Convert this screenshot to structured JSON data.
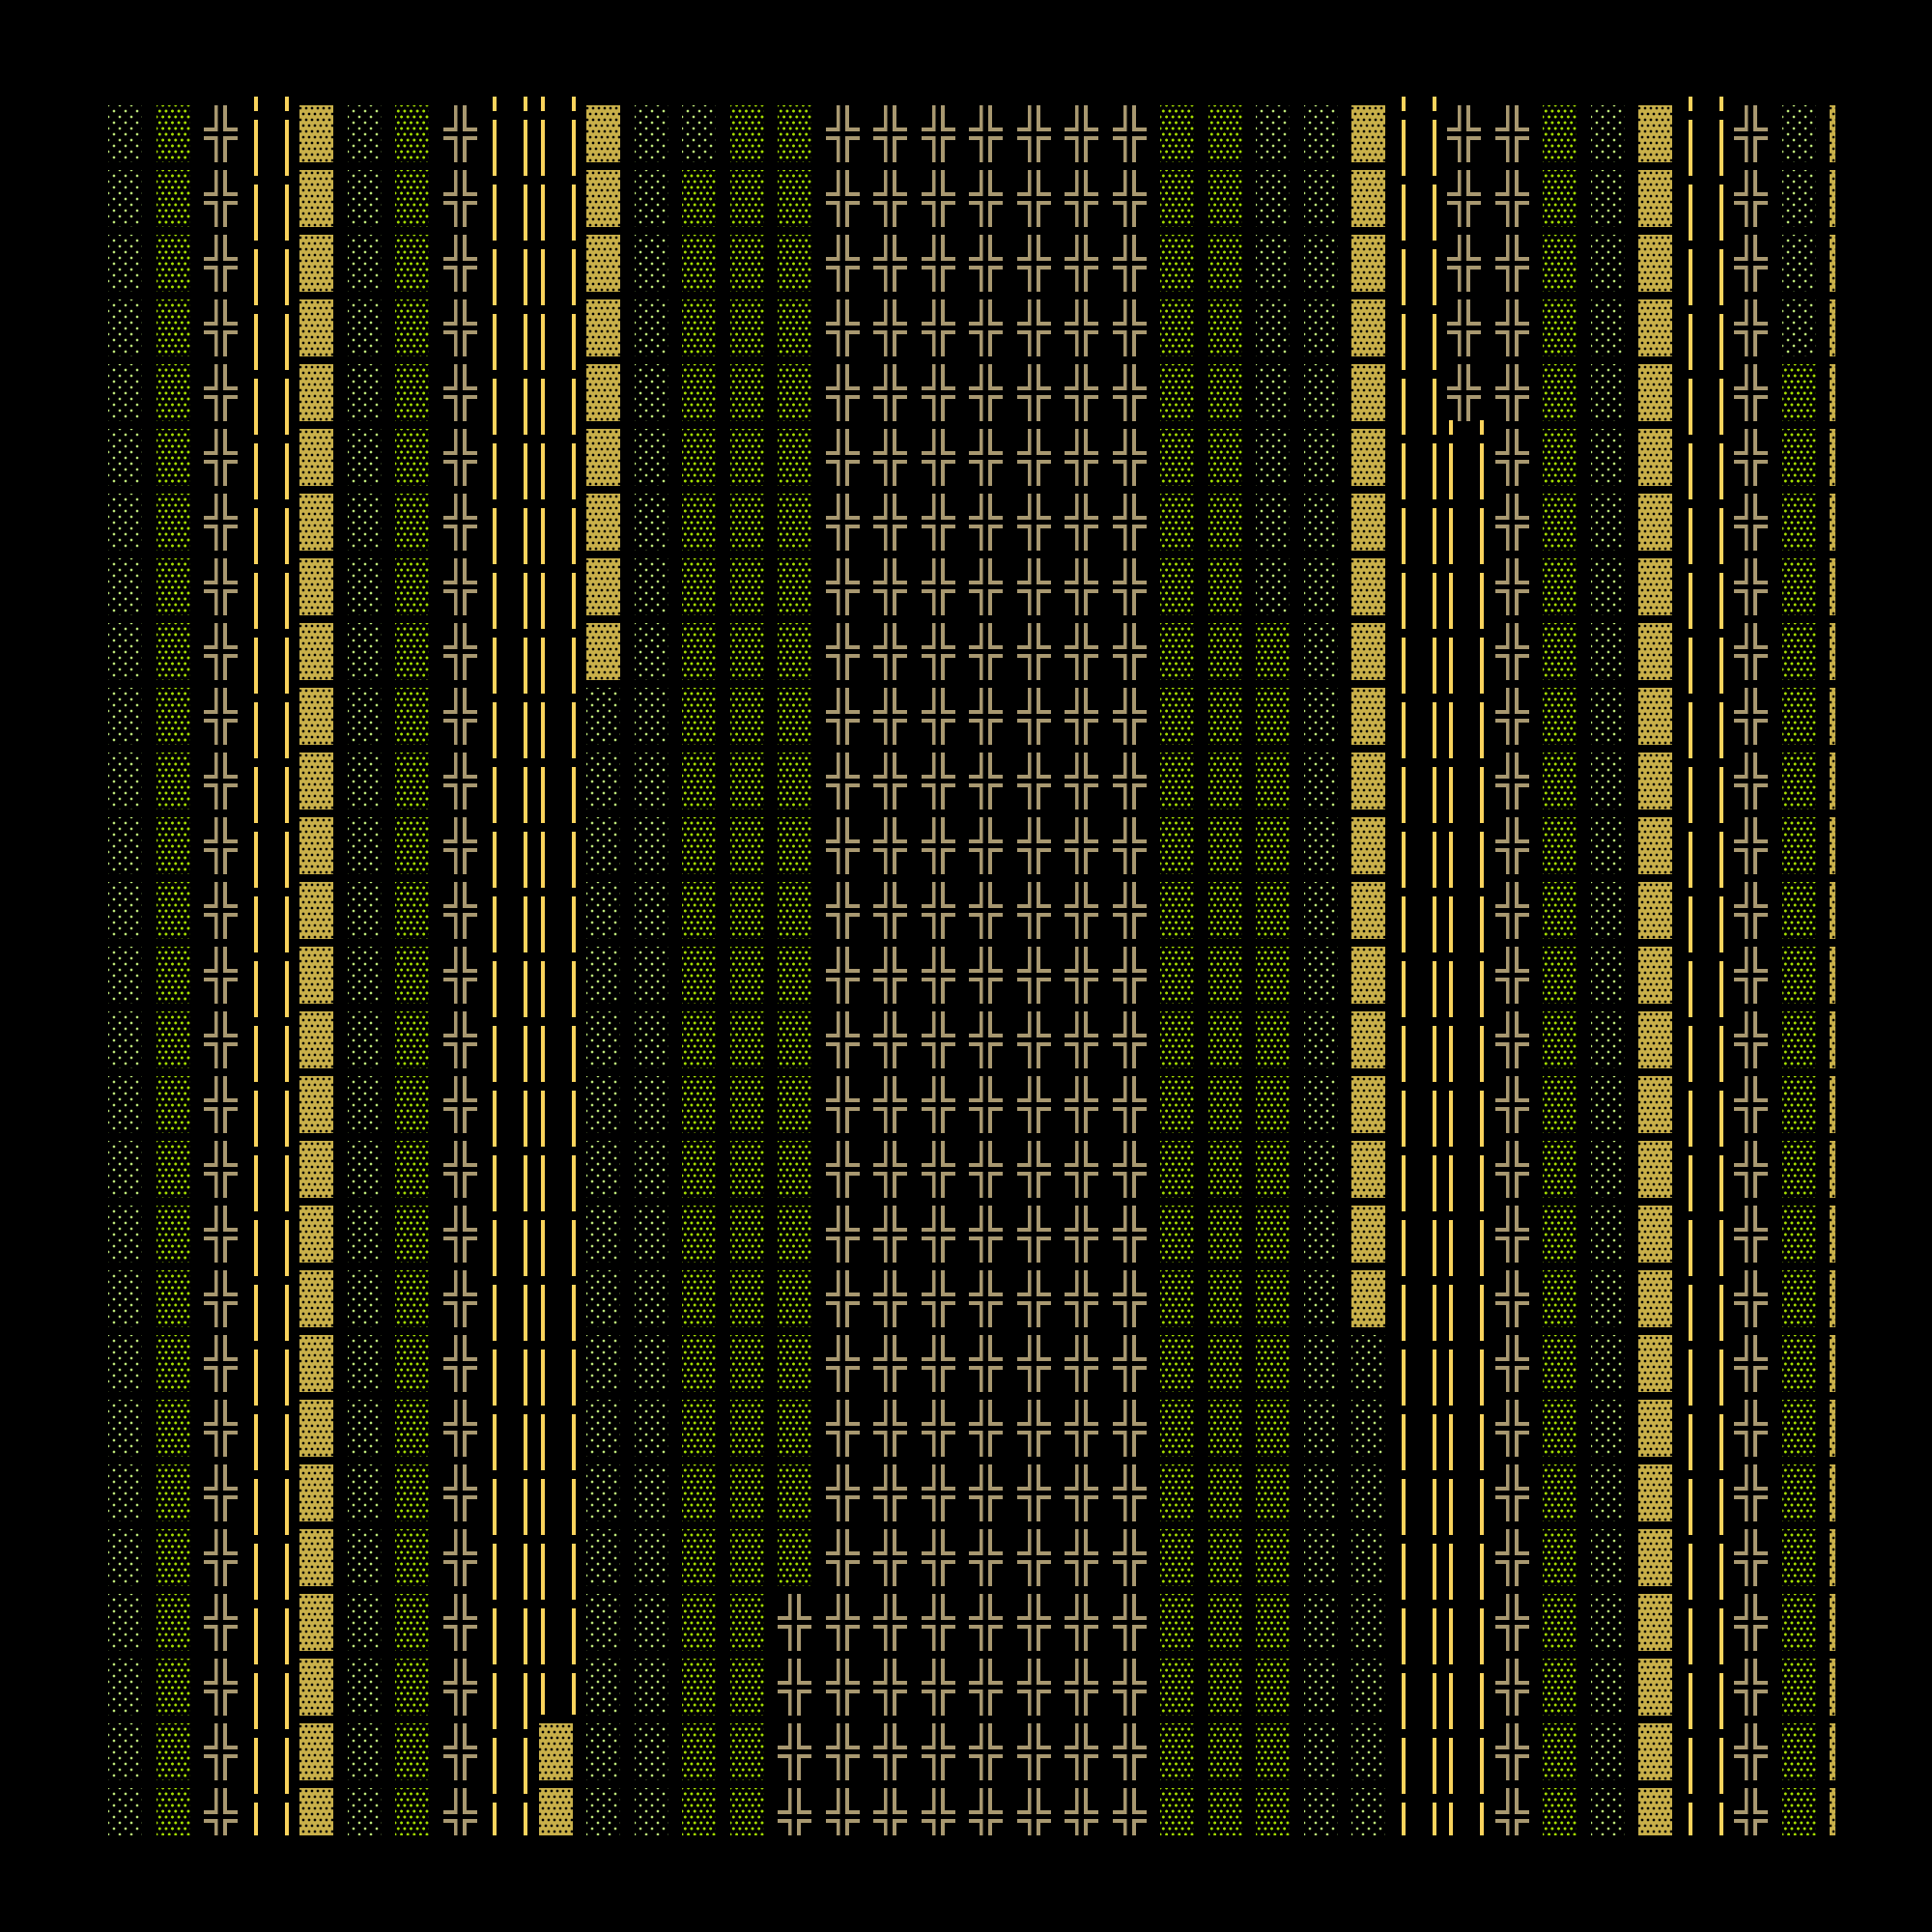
{
  "terminal": {
    "glyphs": {
      "light_shade": "░",
      "medium_shade": "▒",
      "dark_shade": "▓",
      "double_vertical": "║",
      "double_cross": "╬"
    },
    "colors": {
      "background": "#000000",
      "light_shade": "#bde67a",
      "medium_shade": "#a6e000",
      "dark_shade": "#c9b04a",
      "double_vertical": "#f9d35c",
      "double_cross": "#a89870"
    },
    "lines": [
      "░▒╬║▓░▒╬║║▓░░▒▒╬╬╬╬╬╬╬▒▒░░▓║╬╬▒░▓║╬░▓",
      "░▒╬║▓░▒╬║║▓░▒▒▒╬╬╬╬╬╬╬▒▒░░▓║╬╬▒░▓║╬░▓",
      "░▒╬║▓░▒╬║║▓░▒▒▒╬╬╬╬╬╬╬▒▒░░▓║╬╬▒░▓║╬░▓",
      "░▒╬║▓░▒╬║║▓░▒▒▒╬╬╬╬╬╬╬▒▒░░▓║╬╬▒░▓║╬░▓",
      "░▒╬║▓░▒╬║║▓░▒▒▒╬╬╬╬╬╬╬▒▒░░▓║╬╬▒░▓║╬▒▓",
      "░▒╬║▓░▒╬║║▓░▒▒▒╬╬╬╬╬╬╬▒▒░░▓║║╬▒░▓║╬▒▓",
      "░▒╬║▓░▒╬║║▓░▒▒▒╬╬╬╬╬╬╬▒▒░░▓║║╬▒░▓║╬▒▓",
      "░▒╬║▓░▒╬║║▓░▒▒▒╬╬╬╬╬╬╬▒▒░░▓║║╬▒░▓║╬▒▓",
      "░▒╬║▓░▒╬║║▓░▒▒▒╬╬╬╬╬╬╬▒▒▒░▓║║╬▒░▓║╬▒▓",
      "░▒╬║▓░▒╬║║░░▒▒▒╬╬╬╬╬╬╬▒▒▒░▓║║╬▒░▓║╬▒▓",
      "░▒╬║▓░▒╬║║░░▒▒▒╬╬╬╬╬╬╬▒▒▒░▓║║╬▒░▓║╬▒▓",
      "░▒╬║▓░▒╬║║░░▒▒▒╬╬╬╬╬╬╬▒▒▒░▓║║╬▒░▓║╬▒▓",
      "░▒╬║▓░▒╬║║░░▒▒▒╬╬╬╬╬╬╬▒▒▒░▓║║╬▒░▓║╬▒▓",
      "░▒╬║▓░▒╬║║░░▒▒▒╬╬╬╬╬╬╬▒▒▒░▓║║╬▒░▓║╬▒▓",
      "░▒╬║▓░▒╬║║░░▒▒▒╬╬╬╬╬╬╬▒▒▒░▓║║╬▒░▓║╬▒▓",
      "░▒╬║▓░▒╬║║░░▒▒▒╬╬╬╬╬╬╬▒▒▒░▓║║╬▒░▓║╬▒▓",
      "░▒╬║▓░▒╬║║░░▒▒▒╬╬╬╬╬╬╬▒▒▒░▓║║╬▒░▓║╬▒▓",
      "░▒╬║▓░▒╬║║░░▒▒▒╬╬╬╬╬╬╬▒▒▒░▓║║╬▒░▓║╬▒▓",
      "░▒╬║▓░▒╬║║░░▒▒▒╬╬╬╬╬╬╬▒▒▒░▓║║╬▒░▓║╬▒▓",
      "░▒╬║▓░▒╬║║░░▒▒▒╬╬╬╬╬╬╬▒▒▒░░║║╬▒░▓║╬▒▓",
      "░▒╬║▓░▒╬║║░░▒▒▒╬╬╬╬╬╬╬▒▒▒░░║║╬▒░▓║╬▒▓",
      "░▒╬║▓░▒╬║║░░▒▒▒╬╬╬╬╬╬╬▒▒▒░░║║╬▒░▓║╬▒▓",
      "░▒╬║▓░▒╬║║░░▒▒▒╬╬╬╬╬╬╬▒▒▒░░║║╬▒░▓║╬▒▓",
      "░▒╬║▓░▒╬║║░░▒▒╬╬╬╬╬╬╬╬▒▒▒░░║║╬▒░▓║╬▒▓",
      "░▒╬║▓░▒╬║║░░▒▒╬╬╬╬╬╬╬╬▒▒▒░░║║╬▒░▓║╬▒▓",
      "░▒╬║▓░▒╬║▓░░▒▒╬╬╬╬╬╬╬╬▒▒▒░░║║╬▒░▓║╬▒▓",
      "░▒╬║▓░▒╬║▓░░▒▒╬╬╬╬╬╬╬╬▒▒▒░░║║╬▒░▓║╬▒▓"
    ]
  }
}
